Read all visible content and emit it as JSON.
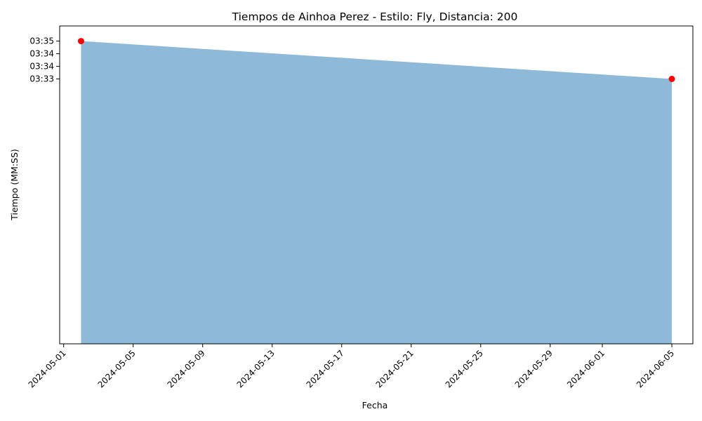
{
  "chart_data": {
    "type": "area",
    "title": "Tiempos de Ainhoa Perez - Estilo: Fly, Distancia: 200",
    "xlabel": "Fecha",
    "ylabel": "Tiempo (MM:SS)",
    "x_ticks": [
      "2024-05-01",
      "2024-05-05",
      "2024-05-09",
      "2024-05-13",
      "2024-05-17",
      "2024-05-21",
      "2024-05-25",
      "2024-05-29",
      "2024-06-01",
      "2024-06-05"
    ],
    "y_ticks": [
      {
        "value_seconds": 215,
        "label": "03:35"
      },
      {
        "value_seconds": 214.5,
        "label": "03:34"
      },
      {
        "value_seconds": 214,
        "label": "03:34"
      },
      {
        "value_seconds": 213.5,
        "label": "03:33"
      }
    ],
    "ylim_seconds": [
      203.0,
      215.6
    ],
    "series": [
      {
        "x": [
          "2024-05-02",
          "2024-06-05"
        ],
        "y_seconds": [
          215,
          213.5
        ],
        "fill_color": "#8fb9d8",
        "marker_color": "#ff0000"
      }
    ],
    "grid": false,
    "legend": "none"
  }
}
